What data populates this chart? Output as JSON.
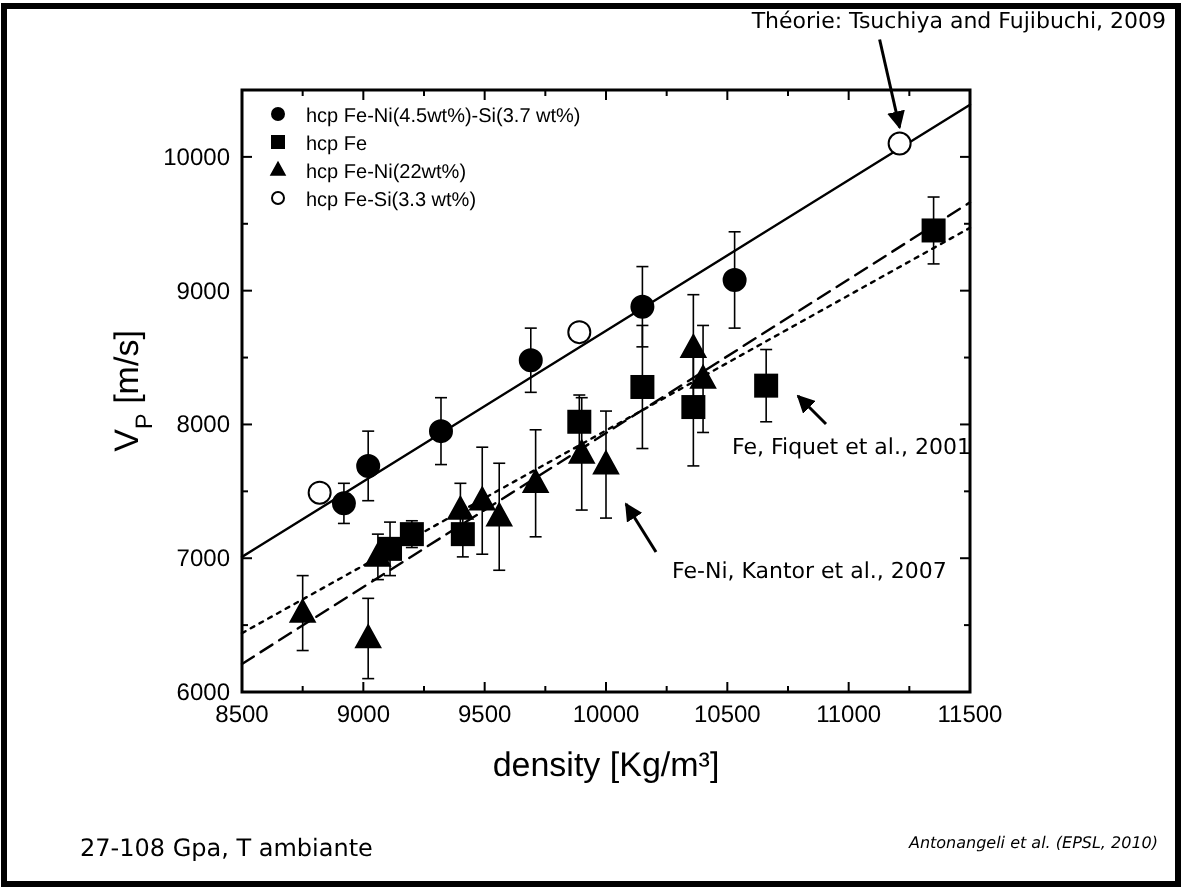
{
  "chart_data": {
    "type": "scatter",
    "xlabel": "density [Kg/m³]",
    "ylabel": "V$_{P}$ [m/s]",
    "xlim": [
      8500,
      11500
    ],
    "ylim": [
      6000,
      10500
    ],
    "xticks": [
      8500,
      {
        "value": 8750,
        "label": null
      },
      9000,
      {
        "value": 9250,
        "label": null
      },
      9500,
      {
        "value": 9750,
        "label": null
      },
      10000,
      {
        "value": 10250,
        "label": null
      },
      10500,
      {
        "value": 10750,
        "label": null
      },
      11000,
      {
        "value": 11250,
        "label": null
      },
      11500
    ],
    "yticks": [
      6000,
      {
        "value": 6500,
        "label": null
      },
      7000,
      {
        "value": 7500,
        "label": null
      },
      8000,
      {
        "value": 8500,
        "label": null
      },
      9000,
      {
        "value": 9500,
        "label": null
      },
      10000
    ],
    "legend": "top left",
    "grid": false,
    "series": [
      {
        "name": "hcp Fe-Ni(4.5wt%)-Si(3.7 wt%)",
        "color": "#000000",
        "marker": "circle",
        "x": [
          8920,
          9020,
          9320,
          9690,
          10150,
          10530
        ],
        "values": [
          7410,
          7690,
          7950,
          8480,
          8880,
          9080
        ],
        "errors": [
          150,
          260,
          250,
          240,
          300,
          360
        ]
      },
      {
        "name": "hcp Fe",
        "color": "#000000",
        "marker": "square",
        "x": [
          9110,
          9200,
          9410,
          9890,
          10150,
          10360,
          10660,
          11350
        ],
        "values": [
          7070,
          7180,
          7180,
          8020,
          8280,
          8130,
          8290,
          9450
        ],
        "errors": [
          200,
          100,
          170,
          200,
          460,
          440,
          270,
          250
        ]
      },
      {
        "name": "hcp Fe-Ni(22wt%)",
        "color": "#000000",
        "marker": "triangle",
        "x": [
          8750,
          9020,
          9060,
          9400,
          9490,
          9560,
          9710,
          9900,
          10000,
          10360,
          10400
        ],
        "values": [
          6590,
          6400,
          7010,
          7360,
          7430,
          7310,
          7560,
          7780,
          7700,
          8570,
          8340
        ],
        "errors": [
          280,
          300,
          170,
          200,
          400,
          400,
          400,
          420,
          400,
          400,
          400
        ]
      },
      {
        "name": "hcp Fe-Si(3.3 wt%)",
        "color": "#ffffff",
        "marker": "circle",
        "x": [
          8820,
          9890,
          11210
        ],
        "values": [
          7490,
          8690,
          10100
        ]
      },
      {
        "type": "line",
        "color": "#000000",
        "line_style": "solid",
        "x": [
          8500,
          11500
        ],
        "values": [
          7010,
          10390
        ]
      },
      {
        "type": "line",
        "color": "#000000",
        "line_style": "dashed",
        "x": [
          8500,
          11500
        ],
        "values": [
          6210,
          9660
        ]
      },
      {
        "type": "line",
        "color": "#000000",
        "line_style": "dotted",
        "x": [
          8500,
          11500
        ],
        "values": [
          6440,
          9470
        ]
      }
    ],
    "annotations": [
      {
        "text": "Théorie: Tsuchiya and Fujibuchi, 2009",
        "x": 11210,
        "y": 10100
      },
      "Fe, Fiquet et al., 2001",
      "Fe-Ni, Kantor et al., 2007",
      "27-108 Gpa, T ambiante",
      "Antonangeli et al. (EPSL, 2010)"
    ]
  }
}
